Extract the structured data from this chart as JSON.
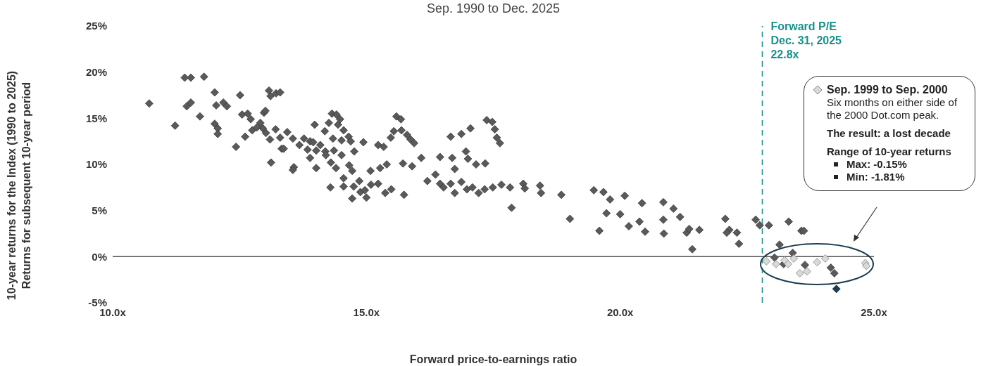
{
  "chart_data": {
    "type": "scatter",
    "title": "Sep. 1990 to Dec. 2025",
    "xlabel": "Forward price-to-earnings ratio",
    "ylabel": "10-year returns for the Index (1990 to 2025)\nReturns for subsequent 10-year period",
    "xlim": [
      10,
      25
    ],
    "xticks": [
      {
        "value": 10,
        "label": "10.0x"
      },
      {
        "value": 15,
        "label": "15.0x"
      },
      {
        "value": 20,
        "label": "20.0x"
      },
      {
        "value": 25,
        "label": "25.0x"
      }
    ],
    "ylim": [
      -5,
      25
    ],
    "yticks": [
      {
        "value": -5,
        "label": "-5%"
      },
      {
        "value": 0,
        "label": "0%"
      },
      {
        "value": 5,
        "label": "5%"
      },
      {
        "value": 10,
        "label": "10%"
      },
      {
        "value": 15,
        "label": "15%"
      },
      {
        "value": 20,
        "label": "20%"
      },
      {
        "value": 25,
        "label": "25%"
      }
    ],
    "marker": "diamond",
    "legend": "top right",
    "ref_lines": [
      {
        "axis": "x",
        "value": 22.8,
        "label": "Forward P/E\nDec. 31, 2025\n22.8x",
        "color": "#17918a",
        "line_style": "dashed"
      }
    ],
    "annotations": [
      "Six months on either side of the 2000 Dot.com peak.",
      "The result: a lost decade",
      "Range of 10-year returns",
      "Max: -0.15%",
      "Min: -1.81%"
    ],
    "series": [
      {
        "color": "#5a5a5a",
        "x": [
          10.72,
          11.23,
          11.42,
          11.54,
          11.8,
          11.46,
          11.54,
          11.72,
          12.01,
          12.04,
          12.18,
          12.25,
          12.01,
          12.07,
          12.07,
          12.43,
          12.51,
          12.55,
          12.66,
          12.72,
          12.61,
          12.75,
          12.84,
          12.91,
          12.98,
          13.08,
          13.11,
          13.22,
          13.3,
          13.01,
          12.96,
          13.02,
          13.1,
          13.12,
          13.21,
          13.3,
          13.33,
          13.37,
          13.44,
          13.55,
          13.57,
          13.55,
          13.68,
          13.77,
          13.89,
          13.84,
          13.98,
          13.95,
          14.01,
          13.89,
          14.01,
          14.18,
          14.26,
          14.32,
          14.41,
          14.48,
          14.44,
          14.55,
          14.09,
          14.34,
          14.51,
          14.65,
          14.19,
          14.36,
          14.69,
          14.76,
          14.2,
          14.3,
          14.51,
          14.66,
          14.4,
          14.55,
          14.72,
          14.29,
          14.55,
          14.75,
          14.88,
          14.86,
          14.97,
          15.09,
          14.72,
          15.0,
          15.23,
          15.37,
          15.49,
          15.74,
          15.08,
          15.27,
          15.4,
          14.94,
          15.23,
          15.34,
          15.48,
          15.54,
          15.59,
          15.68,
          15.69,
          15.8,
          15.87,
          15.94,
          15.72,
          15.9,
          16.08,
          16.2,
          16.36,
          16.45,
          16.52,
          16.66,
          16.74,
          16.87,
          16.98,
          16.74,
          16.45,
          16.66,
          16.69,
          16.87,
          16.96,
          17.05,
          17.0,
          17.16,
          17.34,
          17.37,
          17.48,
          17.53,
          17.57,
          17.63,
          17.09,
          17.21,
          17.33,
          17.49,
          17.66,
          17.83,
          17.86,
          18.09,
          18.12,
          18.42,
          18.44,
          18.84,
          19.01,
          19.48,
          19.67,
          19.59,
          19.8,
          19.73,
          20.09,
          20.0,
          20.17,
          20.38,
          20.43,
          20.49,
          20.85,
          20.85,
          20.86,
          21.05,
          21.18,
          21.31,
          21.36,
          21.42,
          21.56,
          22.07,
          22.15,
          22.1,
          22.3,
          22.34,
          22.67,
          22.75,
          22.93,
          23.32,
          23.57,
          23.62,
          23.14,
          23.4,
          23.04,
          23.22,
          23.64,
          24.15,
          24.22
        ],
        "values": [
          16.6,
          14.2,
          19.4,
          19.4,
          19.5,
          16.3,
          16.7,
          15.2,
          17.8,
          16.4,
          16.7,
          16.3,
          14.4,
          13.9,
          13.3,
          11.9,
          17.5,
          15.4,
          15.5,
          14.9,
          13.0,
          13.7,
          14.0,
          14.5,
          15.6,
          18.0,
          17.4,
          17.7,
          17.8,
          15.8,
          13.9,
          13.4,
          12.7,
          10.2,
          13.8,
          12.9,
          11.7,
          11.7,
          13.5,
          12.8,
          9.7,
          9.4,
          12.1,
          12.8,
          12.5,
          11.6,
          14.3,
          12.4,
          11.5,
          10.7,
          9.6,
          13.6,
          14.5,
          15.5,
          15.4,
          14.9,
          14.3,
          13.7,
          12.1,
          12.8,
          12.6,
          13.0,
          11.4,
          11.5,
          12.5,
          11.4,
          11.0,
          10.2,
          11.0,
          9.9,
          9.6,
          8.5,
          9.3,
          7.5,
          7.6,
          7.6,
          7.0,
          8.2,
          7.2,
          7.8,
          6.3,
          6.4,
          7.9,
          6.9,
          7.3,
          6.7,
          9.3,
          9.6,
          10.0,
          12.4,
          12.1,
          11.9,
          12.9,
          13.6,
          15.2,
          14.9,
          13.7,
          13.2,
          12.7,
          12.3,
          10.1,
          9.8,
          10.7,
          8.2,
          8.9,
          7.9,
          7.5,
          7.9,
          6.9,
          8.1,
          7.3,
          9.5,
          10.8,
          13.0,
          10.7,
          13.3,
          11.4,
          13.9,
          10.6,
          10.0,
          10.1,
          14.8,
          14.6,
          13.8,
          12.9,
          12.3,
          7.5,
          6.9,
          7.3,
          7.5,
          7.8,
          7.5,
          5.3,
          7.9,
          7.4,
          7.7,
          6.9,
          6.7,
          4.1,
          7.2,
          7.0,
          2.8,
          6.2,
          4.7,
          6.6,
          4.6,
          3.3,
          3.8,
          5.8,
          2.7,
          5.9,
          4.0,
          2.5,
          5.2,
          4.3,
          2.6,
          3.0,
          0.8,
          2.9,
          4.1,
          2.9,
          2.6,
          2.6,
          1.4,
          4.0,
          3.4,
          3.4,
          3.8,
          2.8,
          2.8,
          1.3,
          0.4,
          -0.1,
          -0.8,
          -0.9,
          -1.2,
          -1.8
        ]
      },
      {
        "name": "Sep. 1999 to Sep. 2000",
        "color": "#d9d9d9",
        "x": [
          22.88,
          23.07,
          23.24,
          23.31,
          23.42,
          23.54,
          23.68,
          23.88,
          24.04,
          24.83,
          24.85
        ],
        "values": [
          -0.5,
          -0.8,
          -0.4,
          -0.8,
          -0.2,
          -1.8,
          -1.6,
          -0.6,
          -0.2,
          -0.7,
          -1.0
        ]
      },
      {
        "color": "#1b3d4f",
        "x": [
          24.26
        ],
        "values": [
          -3.5
        ]
      }
    ]
  }
}
